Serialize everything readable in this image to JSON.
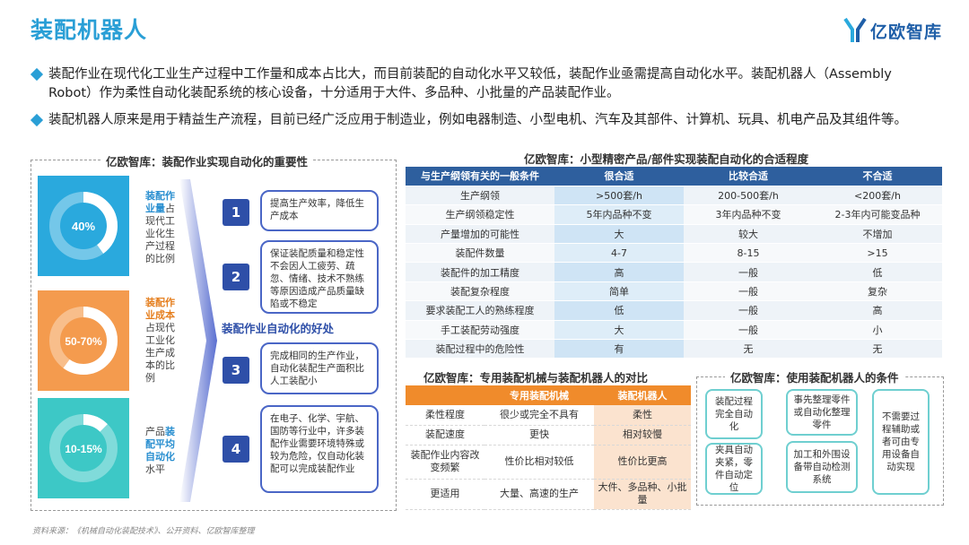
{
  "title": "装配机器人",
  "logo": {
    "text": "亿欧智库"
  },
  "bullets": [
    "装配作业在现代化工业生产过程中工作量和成本占比大，而目前装配的自动化水平又较低，装配作业亟需提高自动化水平。装配机器人（Assembly Robot）作为柔性自动化装配系统的核心设备，十分适用于大件、多品种、小批量的产品装配作业。",
    "装配机器人原来是用于精益生产流程，目前已经广泛应用于制造业，例如电器制造、小型电机、汽车及其部件、计算机、玩具、机电产品及其组件等。"
  ],
  "left_panel": {
    "title": "亿欧智库：装配作业实现自动化的重要性",
    "stats": [
      {
        "value": "40%",
        "fraction": 0.4,
        "color": "#2aa9dd",
        "label_hl": "装配作业量",
        "label_rest": "占现代工业化生产过程的比例",
        "hl_color": "#2a8fd0"
      },
      {
        "value": "50-70%",
        "fraction": 0.6,
        "color": "#f49b4e",
        "label_hl": "装配作业成本",
        "label_rest": "占现代工业化生产成本的比例",
        "hl_color": "#e57f1f"
      },
      {
        "value": "10-15%",
        "fraction": 0.125,
        "color": "#3dc8c6",
        "label_hl": "装配平均自动化",
        "label_pre": "产品",
        "label_rest": "水平",
        "hl_color": "#2a8fd0"
      }
    ],
    "mid_label": "装配作业自动化的好处",
    "benefits": [
      {
        "num": "1",
        "text": "提高生产效率，降低生产成本"
      },
      {
        "num": "2",
        "text": "保证装配质量和稳定性不会因人工疲劳、疏忽、情绪、技术不熟练等原因造成产品质量缺陷或不稳定"
      },
      {
        "num": "3",
        "text": "完成相同的生产作业，自动化装配生产面积比人工装配小"
      },
      {
        "num": "4",
        "text": "在电子、化学、宇航、国防等行业中，许多装配作业需要环境特殊或较为危险，仅自动化装配可以完成装配作业"
      }
    ]
  },
  "table1": {
    "title": "亿欧智库：小型精密产品/部件实现装配自动化的合适程度",
    "headers": [
      "与生产纲领有关的一般条件",
      "很合适",
      "比较合适",
      "不合适"
    ],
    "rows": [
      [
        "生产纲领",
        ">500套/h",
        "200-500套/h",
        "<200套/h"
      ],
      [
        "生产纲领稳定性",
        "5年内品种不变",
        "3年内品种不变",
        "2-3年内可能变品种"
      ],
      [
        "产量增加的可能性",
        "大",
        "较大",
        "不增加"
      ],
      [
        "装配件数量",
        "4-7",
        "8-15",
        ">15"
      ],
      [
        "装配件的加工精度",
        "高",
        "一般",
        "低"
      ],
      [
        "装配复杂程度",
        "简单",
        "一般",
        "复杂"
      ],
      [
        "要求装配工人的熟练程度",
        "低",
        "一般",
        "高"
      ],
      [
        "手工装配劳动强度",
        "大",
        "一般",
        "小"
      ],
      [
        "装配过程中的危险性",
        "有",
        "无",
        "无"
      ]
    ]
  },
  "table2": {
    "title": "亿欧智库：专用装配机械与装配机器人的对比",
    "headers": [
      "",
      "专用装配机械",
      "装配机器人"
    ],
    "rows": [
      [
        "柔性程度",
        "很少或完全不具有",
        "柔性"
      ],
      [
        "装配速度",
        "更快",
        "相对较慢"
      ],
      [
        "装配作业内容改变频繁",
        "性价比相对较低",
        "性价比更高"
      ],
      [
        "更适用",
        "大量、高速的生产",
        "大件、多品种、小批量"
      ]
    ]
  },
  "conditions": {
    "title": "亿欧智库：使用装配机器人的条件",
    "items": [
      "装配过程完全自动化",
      "事先整理零件或自动化整理零件",
      "不需要过程辅助或者可由专用设备自动实现",
      "夹具自动夹紧，零件自动定位",
      "加工和外围设备带自动检测系统"
    ]
  },
  "source": "资料来源：《机械自动化装配技术》、公开资料、亿欧智库整理"
}
